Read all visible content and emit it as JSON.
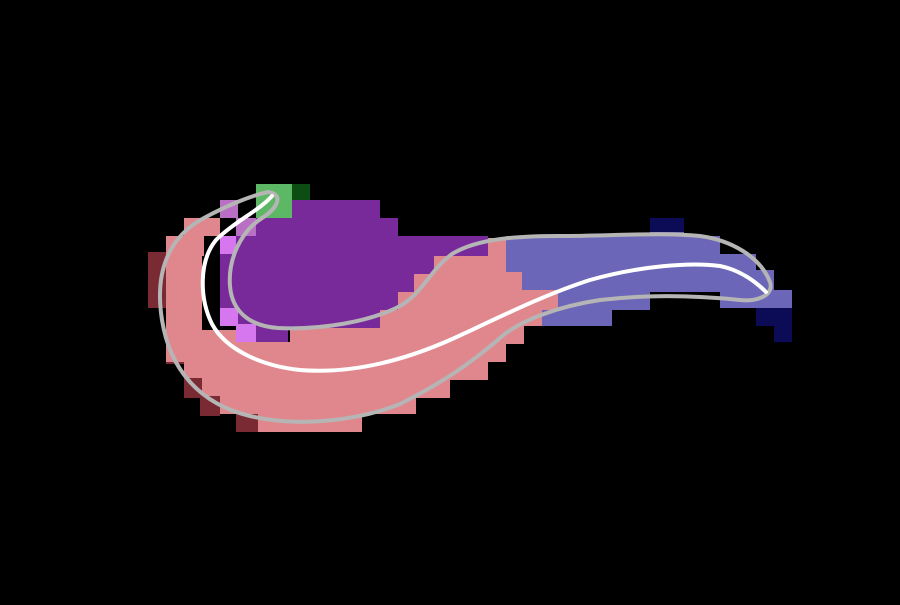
{
  "canvas": {
    "background": "#000000"
  },
  "segmentation": {
    "regions": [
      {
        "name": "body",
        "color": "#e0878e",
        "edge_color": "#7a2a33"
      },
      {
        "name": "head-region",
        "color": "#782a9a",
        "edge_color": "#4a1a62"
      },
      {
        "name": "tail-region",
        "color": "#6b66b8",
        "edge_color": "#0c0c56"
      },
      {
        "name": "tip",
        "color": "#5cb864",
        "edge_color": "#0b4d13"
      },
      {
        "name": "overlap",
        "color": "#d777ef"
      }
    ],
    "outline": {
      "color": "#b5b5b5"
    },
    "centerline": {
      "color": "#ffffff"
    }
  }
}
